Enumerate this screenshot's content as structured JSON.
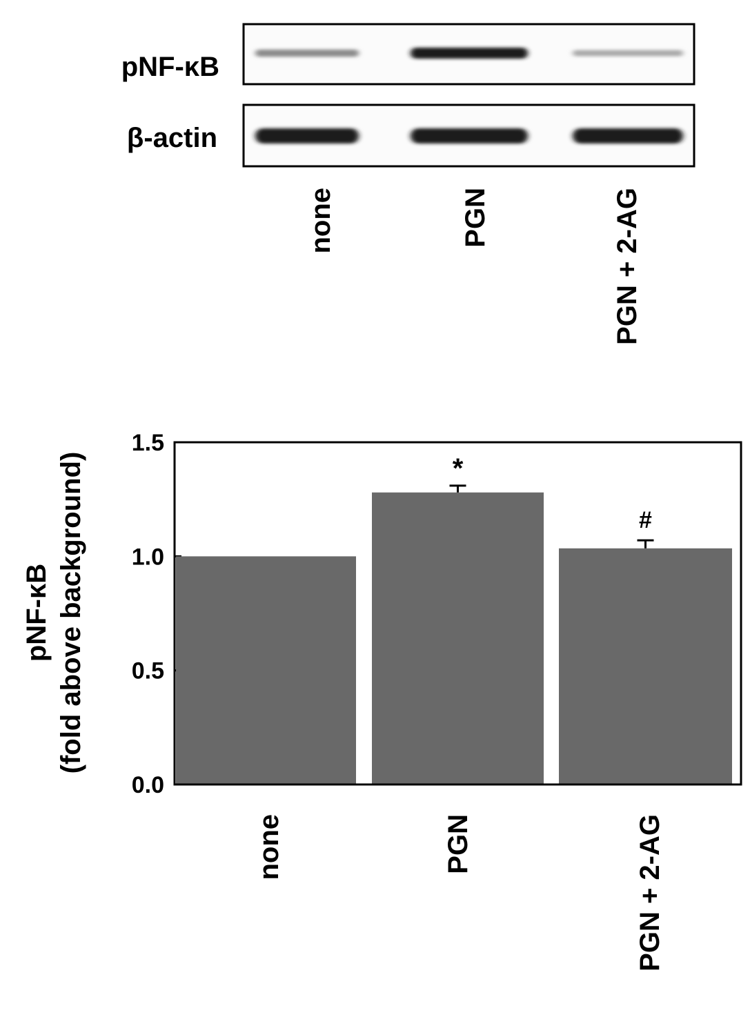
{
  "blot": {
    "rows": [
      {
        "label": "pNF-κB",
        "bands": [
          0.45,
          1.0,
          0.3
        ]
      },
      {
        "label": "β-actin",
        "bands": [
          1.0,
          1.0,
          1.0
        ]
      }
    ],
    "lanes": [
      "none",
      "PGN",
      "PGN + 2-AG"
    ]
  },
  "chart_data": {
    "type": "bar",
    "categories": [
      "none",
      "PGN",
      "PGN + 2-AG"
    ],
    "values": [
      1.0,
      1.28,
      1.035
    ],
    "errors": [
      0.0,
      0.03,
      0.035
    ],
    "annotations": [
      "",
      "*",
      "#"
    ],
    "ylabel": "pNF-κB",
    "ylabel2": "(fold above background)",
    "ylim": [
      0,
      1.5
    ],
    "yticks": [
      "0.0",
      "0.5",
      "1.0",
      "1.5"
    ],
    "bar_color": "#696969",
    "grid": false
  }
}
